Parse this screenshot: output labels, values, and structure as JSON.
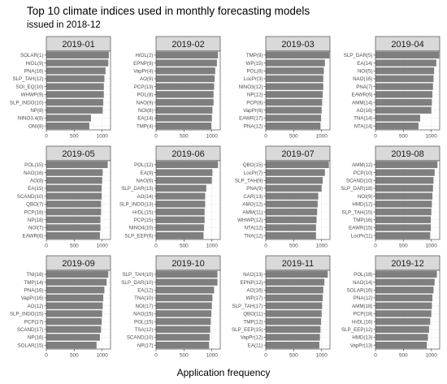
{
  "title": "Top 10 climate indices used in monthly forecasting models",
  "subtitle": "issued in 2018-12",
  "xlabel": "Application frequency",
  "colors": {
    "bar": "#7f7f7f",
    "strip": "#d9d9d9",
    "panel_bg": "#ffffff",
    "grid": "#ebebeb",
    "border": "#333333",
    "tick_text": "#4d4d4d"
  },
  "chart_data": [
    {
      "type": "bar",
      "orientation": "horizontal",
      "title": "2019-01",
      "xlim": [
        0,
        1150
      ],
      "xticks": [
        0,
        500,
        1000
      ],
      "grid": true,
      "categories": [
        "SOLAR(1)",
        "HrDL(9)",
        "PNA(16)",
        "SLP_TAH(12)",
        "SOI_EQ(10)",
        "WHWP(9)",
        "SLP_INDO(10)",
        "NP(8)",
        "NINO3.4(8)",
        "ONI(8)"
      ],
      "values": [
        1120,
        1110,
        1060,
        1040,
        1030,
        1030,
        1020,
        1010,
        800,
        770
      ]
    },
    {
      "type": "bar",
      "orientation": "horizontal",
      "title": "2019-02",
      "xlim": [
        0,
        1150
      ],
      "xticks": [
        0,
        500,
        1000
      ],
      "grid": true,
      "categories": [
        "HrDL(2)",
        "EPNP(9)",
        "VapPr(4)",
        "AO(9)",
        "PCP(13)",
        "POL(8)",
        "NAO(9)",
        "NOI(8)",
        "EA(14)",
        "TMP(4)"
      ],
      "values": [
        1110,
        1090,
        1060,
        1050,
        1040,
        1030,
        1030,
        1010,
        1000,
        990
      ]
    },
    {
      "type": "bar",
      "orientation": "horizontal",
      "title": "2019-03",
      "xlim": [
        0,
        1150
      ],
      "xticks": [
        0,
        500,
        1000
      ],
      "grid": true,
      "categories": [
        "TMP(9)",
        "WP(15)",
        "POL(6)",
        "LocPr(3)",
        "NINO3(12)",
        "NP(12)",
        "PCP(8)",
        "VapPr(6)",
        "EAWR(17)",
        "PNA(12)"
      ],
      "values": [
        1140,
        1060,
        1040,
        1030,
        1030,
        1020,
        1010,
        1000,
        990,
        980
      ]
    },
    {
      "type": "bar",
      "orientation": "horizontal",
      "title": "2019-04",
      "xlim": [
        0,
        1150
      ],
      "xticks": [
        0,
        500,
        1000
      ],
      "grid": true,
      "categories": [
        "SLP_DAR(5)",
        "EA(14)",
        "NOI(5)",
        "NAO(16)",
        "PNA(7)",
        "EAWR(6)",
        "AMM(14)",
        "AO(16)",
        "TNA(14)",
        "NTA(14)"
      ],
      "values": [
        1140,
        1090,
        1050,
        1040,
        1030,
        1020,
        1010,
        1000,
        800,
        770
      ]
    },
    {
      "type": "bar",
      "orientation": "horizontal",
      "title": "2019-05",
      "xlim": [
        0,
        1150
      ],
      "xticks": [
        0,
        500,
        1000
      ],
      "grid": true,
      "categories": [
        "POL(15)",
        "NAO(16)",
        "AO(8)",
        "EA(15)",
        "SCAND(10)",
        "QBO(7)",
        "PCP(18)",
        "NP(18)",
        "NOI(7)",
        "EAWR(6)"
      ],
      "values": [
        1100,
        1010,
        1000,
        990,
        990,
        980,
        980,
        970,
        970,
        960
      ]
    },
    {
      "type": "bar",
      "orientation": "horizontal",
      "title": "2019-06",
      "xlim": [
        0,
        1150
      ],
      "xticks": [
        0,
        500,
        1000
      ],
      "grid": true,
      "categories": [
        "POL(12)",
        "EA(9)",
        "NAO(6)",
        "SLP_DAR(13)",
        "AO(14)",
        "SLP_INDO(13)",
        "HrDL(15)",
        "PCP(15)",
        "NINO4(10)",
        "SLP_EEP(6)"
      ],
      "values": [
        1110,
        1010,
        1000,
        900,
        880,
        880,
        870,
        870,
        860,
        850
      ]
    },
    {
      "type": "bar",
      "orientation": "horizontal",
      "title": "2019-07",
      "xlim": [
        0,
        1150
      ],
      "xticks": [
        0,
        500,
        1000
      ],
      "grid": true,
      "categories": [
        "QBO(15)",
        "LocPr(7)",
        "SLP_TAH(9)",
        "PNA(9)",
        "CAR(13)",
        "AMO(12)",
        "AMM(11)",
        "WHWP(12)",
        "NTA(12)",
        "TNA(12)"
      ],
      "values": [
        1130,
        1060,
        1020,
        1000,
        940,
        930,
        920,
        910,
        900,
        900
      ]
    },
    {
      "type": "bar",
      "orientation": "horizontal",
      "title": "2019-08",
      "xlim": [
        0,
        1150
      ],
      "xticks": [
        0,
        500,
        1000
      ],
      "grid": true,
      "categories": [
        "AMM(12)",
        "PCP(10)",
        "SCAND(10)",
        "SLP_DAR(18)",
        "NOI(9)",
        "HMD(12)",
        "SLP_TAH(15)",
        "TMP(16)",
        "EAWR(15)",
        "LocPr(11)"
      ],
      "values": [
        1110,
        1060,
        1040,
        1030,
        1020,
        1010,
        1000,
        990,
        990,
        980
      ]
    },
    {
      "type": "bar",
      "orientation": "horizontal",
      "title": "2019-09",
      "xlim": [
        0,
        1150
      ],
      "xticks": [
        0,
        500,
        1000
      ],
      "grid": true,
      "categories": [
        "TNI(18)",
        "TMP(14)",
        "PNA(16)",
        "VapPr(16)",
        "AO(12)",
        "SLP_INDO(15)",
        "PCP(17)",
        "SCAND(17)",
        "NP(16)",
        "SOLAR(15)"
      ],
      "values": [
        1110,
        1080,
        1040,
        1020,
        1010,
        1000,
        990,
        980,
        960,
        900
      ]
    },
    {
      "type": "bar",
      "orientation": "horizontal",
      "title": "2019-10",
      "xlim": [
        0,
        1150
      ],
      "xticks": [
        0,
        500,
        1000
      ],
      "grid": true,
      "categories": [
        "SLP_TAH(10)",
        "SLP_DAR(10)",
        "EA(12)",
        "TNA(10)",
        "NOI(17)",
        "NAO(15)",
        "POL(15)",
        "TSA(12)",
        "SCAND(10)",
        "NP(17)"
      ],
      "values": [
        1100,
        1100,
        1040,
        1010,
        1000,
        990,
        980,
        970,
        960,
        950
      ]
    },
    {
      "type": "bar",
      "orientation": "horizontal",
      "title": "2019-11",
      "xlim": [
        0,
        1150
      ],
      "xticks": [
        0,
        500,
        1000
      ],
      "grid": true,
      "categories": [
        "NAO(13)",
        "EPNP(12)",
        "AO(16)",
        "WP(17)",
        "SLP_TAH(17)",
        "QBO(11)",
        "TMP(12)",
        "SLP_EEP(15)",
        "VapPr(12)",
        "EA(11)"
      ],
      "values": [
        1110,
        1050,
        1030,
        1020,
        1010,
        1000,
        990,
        980,
        970,
        960
      ]
    },
    {
      "type": "bar",
      "orientation": "horizontal",
      "title": "2019-12",
      "xlim": [
        0,
        1150
      ],
      "xticks": [
        0,
        500,
        1000
      ],
      "grid": true,
      "categories": [
        "POL(18)",
        "NAO(14)",
        "SOLAR(16)",
        "PNA(12)",
        "AMM(18)",
        "PCP(18)",
        "HrDL(16)",
        "SLP_EEP(12)",
        "HMD(13)",
        "VapPr(13)"
      ],
      "values": [
        1100,
        1060,
        1040,
        1020,
        1010,
        1000,
        980,
        960,
        940,
        920
      ]
    }
  ]
}
